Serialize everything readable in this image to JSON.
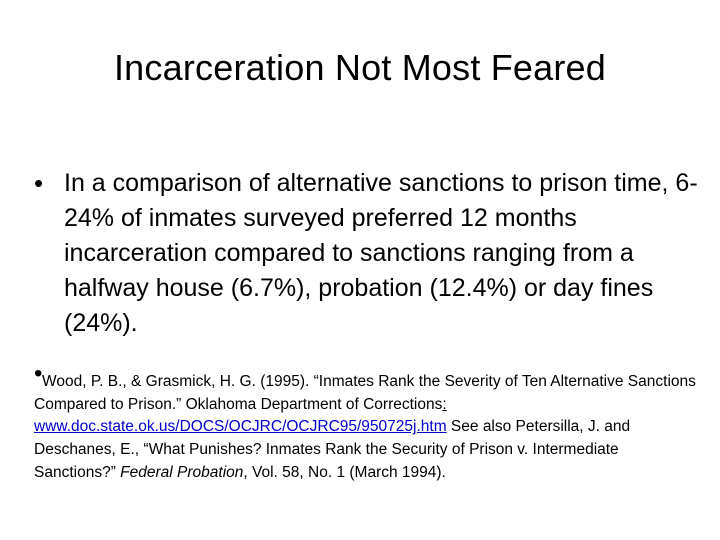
{
  "slide": {
    "title": "Incarceration Not Most Feared",
    "bullet_char": "•",
    "bullet1": "In a comparison of alternative sanctions to prison time, 6-24% of inmates surveyed preferred 12 months incarceration compared to sanctions ranging from a halfway house (6.7%), probation (12.4%) or day fines (24%).",
    "citation": {
      "part1": "Wood, P. B., & Grasmick, H. G. (1995). “Inmates Rank the Severity of Ten Alternative Sanctions Compared to Prison.” Oklahoma Department of Corrections",
      "colon": ":",
      "link": "www.doc.state.ok.us/DOCS/OCJRC/OCJRC95/950725j.htm",
      "part2": " See also Petersilla, J. and Deschanes, E., “What Punishes? Inmates Rank the Security of Prison v. Intermediate Sanctions?” ",
      "journal": "Federal Probation",
      "part3": ", Vol. 58, No. 1 (March 1994)."
    }
  }
}
